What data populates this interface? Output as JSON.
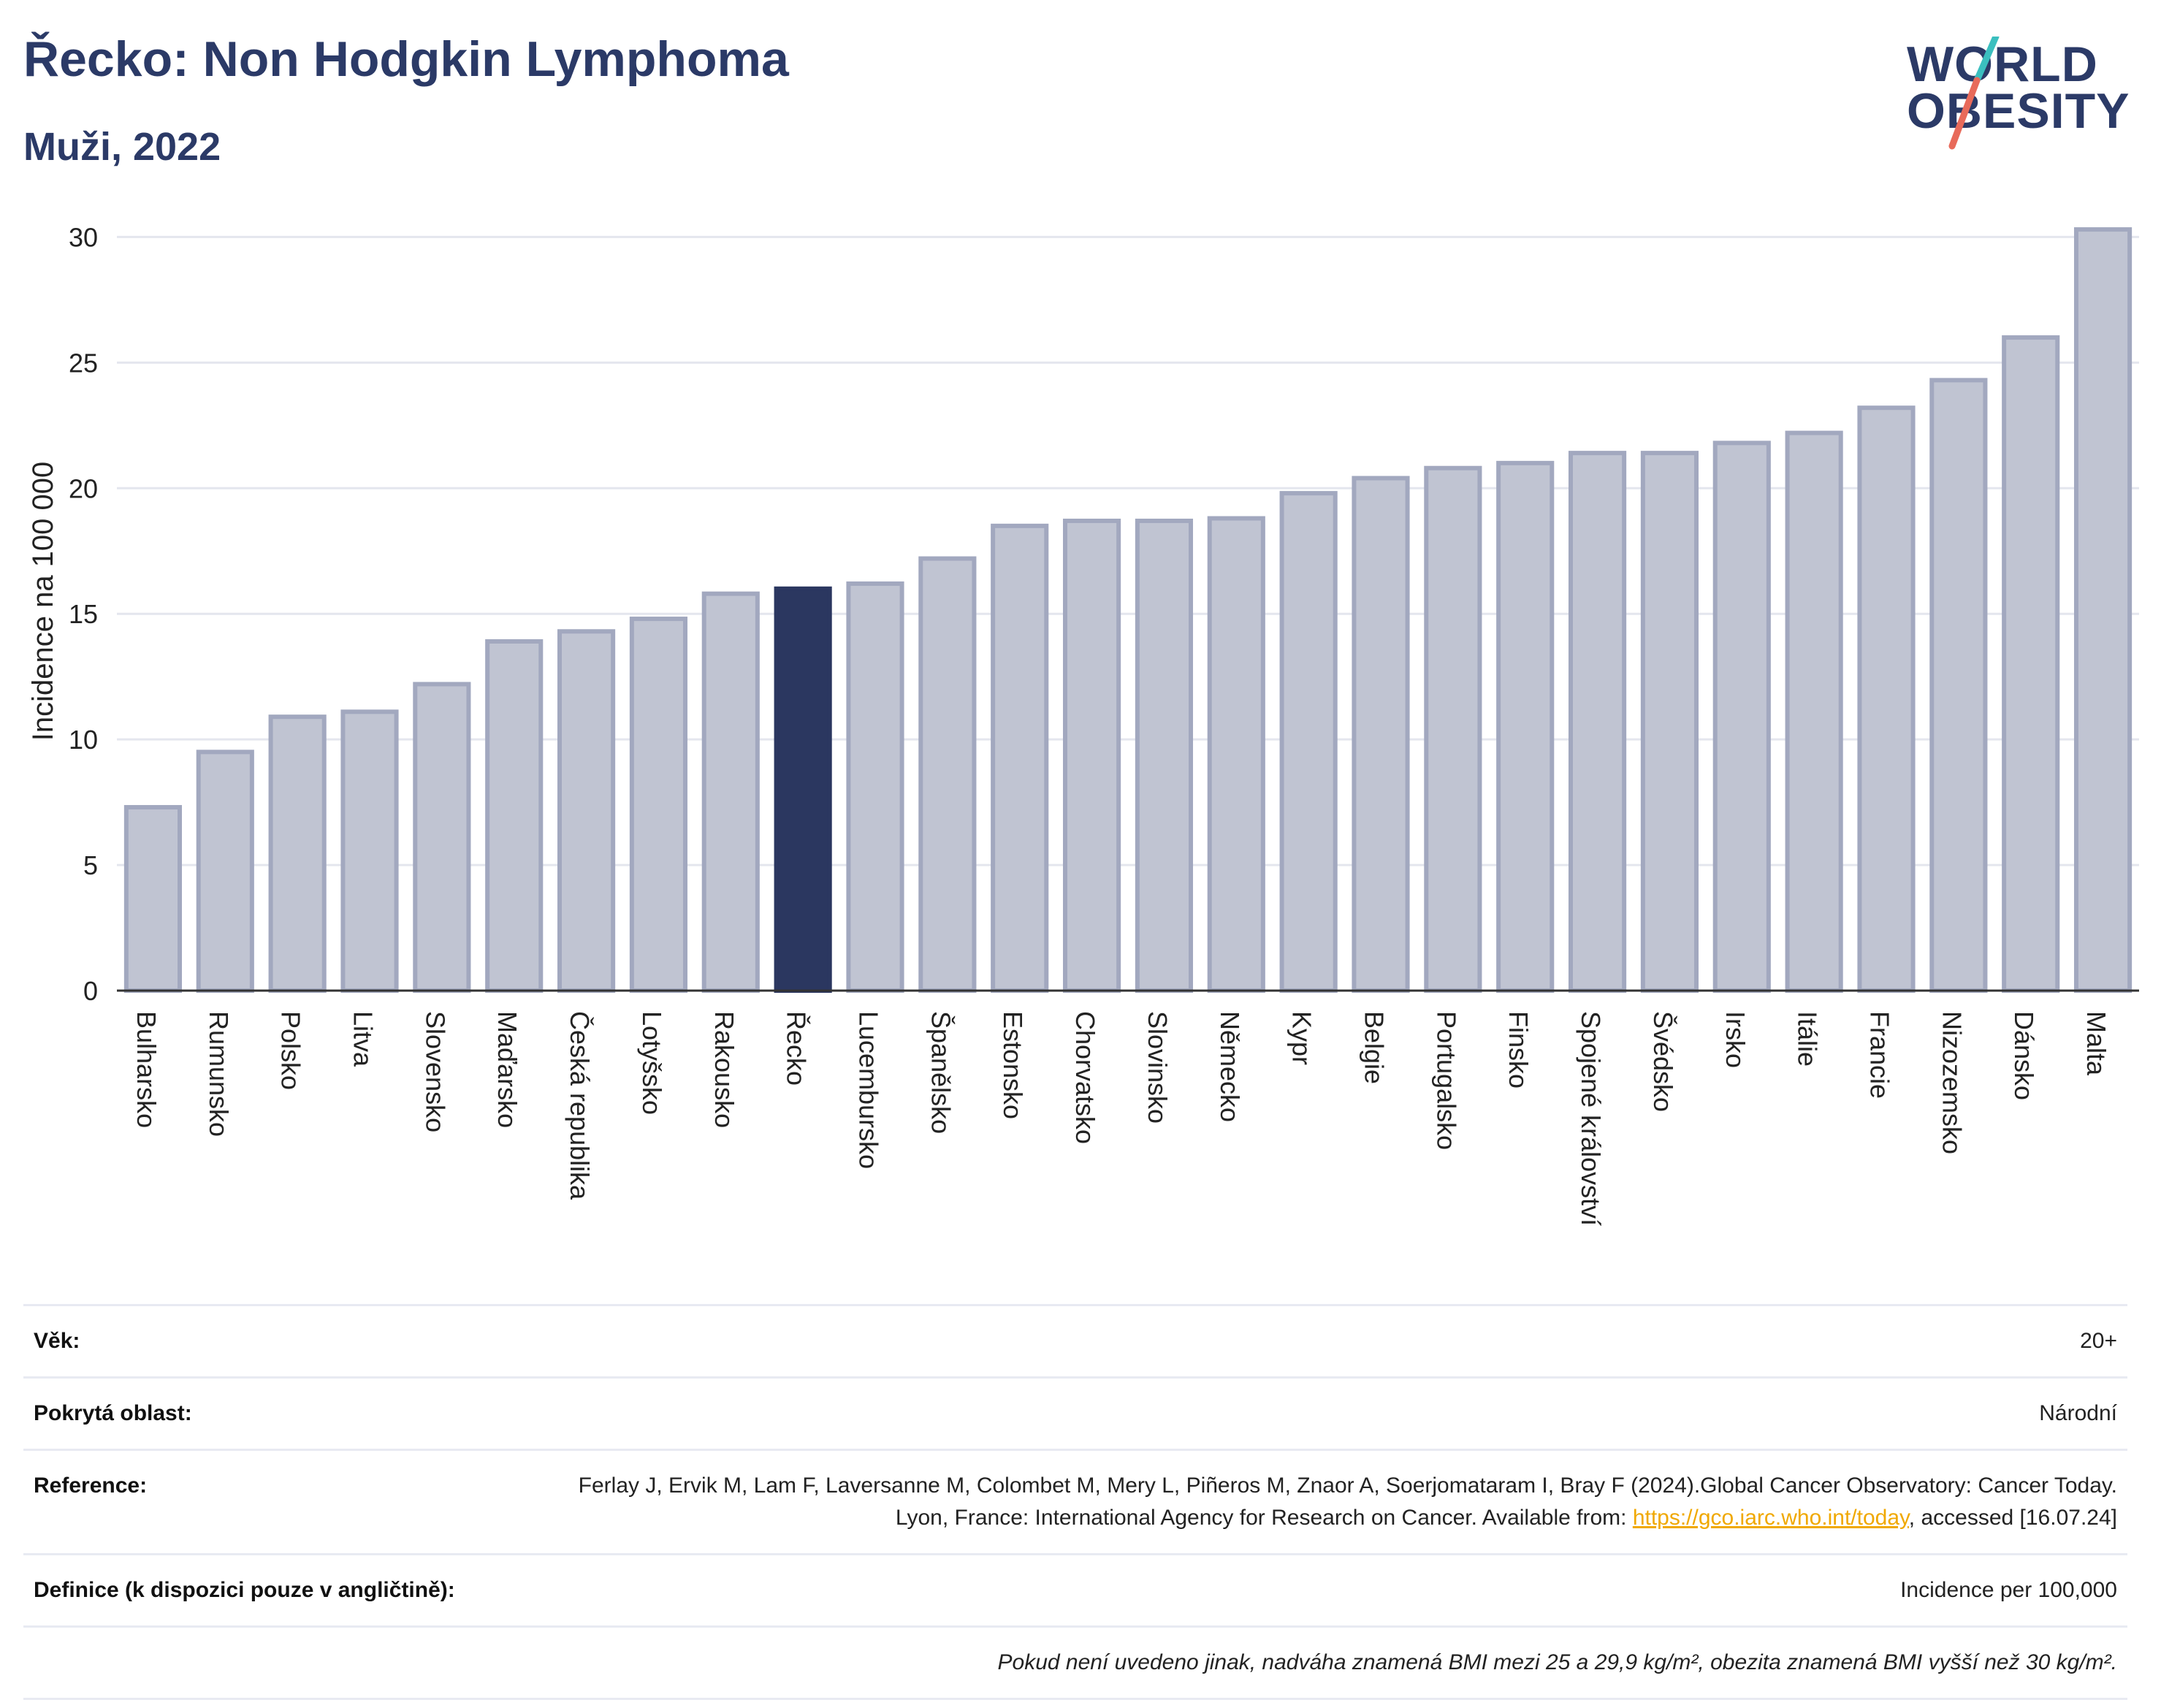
{
  "header": {
    "title": "Řecko: Non Hodgkin Lymphoma",
    "subtitle": "Muži, 2022"
  },
  "logo": {
    "line1": "WORLD",
    "line2": "OBESITY",
    "colors": {
      "text": "#2b3a67",
      "slash_top": "#3bbfbf",
      "slash_bottom": "#e86a5a"
    }
  },
  "chart_data": {
    "type": "bar",
    "title": "",
    "xlabel": "",
    "ylabel": "Incidence na 100 000",
    "ylim": [
      0,
      31
    ],
    "yticks": [
      0,
      5,
      10,
      15,
      20,
      25,
      30
    ],
    "grid": true,
    "highlight": "Řecko",
    "colors": {
      "bar": "#c0c4d2",
      "bar_border": "#a2a8bf",
      "highlight": "#2b3760",
      "axis": "#333333",
      "grid": "#e4e6ee"
    },
    "categories": [
      "Bulharsko",
      "Rumunsko",
      "Polsko",
      "Litva",
      "Slovensko",
      "Maďarsko",
      "Česká republika",
      "Lotyšsko",
      "Rakousko",
      "Řecko",
      "Lucembursko",
      "Španělsko",
      "Estonsko",
      "Chorvatsko",
      "Slovinsko",
      "Německo",
      "Kypr",
      "Belgie",
      "Portugalsko",
      "Finsko",
      "Spojené království",
      "Švédsko",
      "Irsko",
      "Itálie",
      "Francie",
      "Nizozemsko",
      "Dánsko",
      "Malta"
    ],
    "values": [
      7.3,
      9.5,
      10.9,
      11.1,
      12.2,
      13.9,
      14.3,
      14.8,
      15.8,
      16.0,
      16.2,
      17.2,
      18.5,
      18.7,
      18.7,
      18.8,
      19.8,
      20.4,
      20.8,
      21.0,
      21.4,
      21.4,
      21.8,
      22.2,
      23.2,
      24.3,
      26.0,
      30.3
    ]
  },
  "info": {
    "rows": [
      {
        "label": "Věk:",
        "value": "20+"
      },
      {
        "label": "Pokrytá oblast:",
        "value": "Národní"
      },
      {
        "label": "Reference:",
        "value_part1": "Ferlay J, Ervik M, Lam F, Laversanne M, Colombet M, Mery L, Piñeros M, Znaor A, Soerjomataram I, Bray F (2024).Global Cancer Observatory: Cancer Today. Lyon, France: International Agency for Research on Cancer. Available from: ",
        "link": "https://gco.iarc.who.int/today",
        "value_part2": ", accessed [16.07.24]"
      },
      {
        "label": "Definice (k dispozici pouze v angličtině):",
        "value": "Incidence per 100,000"
      }
    ],
    "note": "Pokud není uvedeno jinak, nadváha znamená BMI mezi 25 a 29,9 kg/m², obezita znamená BMI vyšší než 30 kg/m²."
  }
}
